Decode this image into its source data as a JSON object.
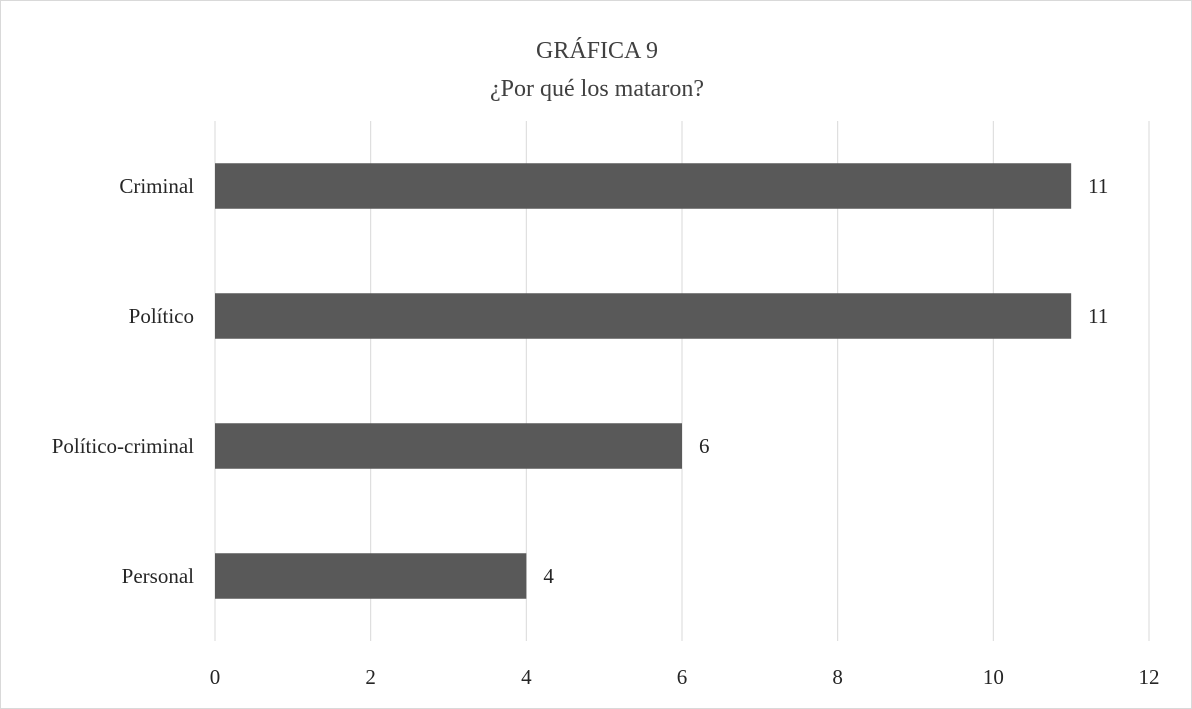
{
  "chart_data": {
    "type": "bar",
    "orientation": "horizontal",
    "title": "GRÁFICA 9",
    "subtitle": "¿Por qué los mataron?",
    "categories": [
      "Criminal",
      "Político",
      "Político-criminal",
      "Personal"
    ],
    "values": [
      11,
      11,
      6,
      4
    ],
    "xlabel": "",
    "ylabel": "",
    "xlim": [
      0,
      12
    ],
    "xticks": [
      0,
      2,
      4,
      6,
      8,
      10,
      12
    ],
    "grid": true,
    "legend": "none",
    "bar_color": "#595959",
    "data_labels": true
  }
}
